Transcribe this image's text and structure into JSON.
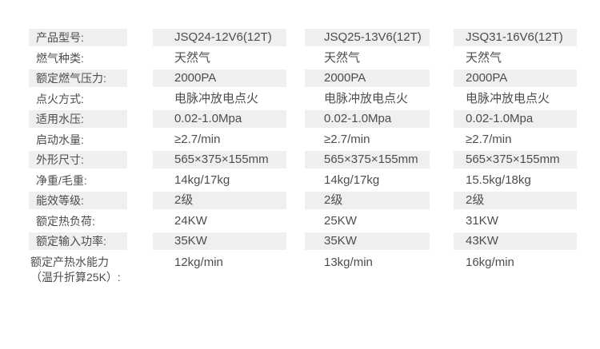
{
  "colors": {
    "background": "#ffffff",
    "row_shade": "#efefef",
    "text": "#4d4d4d"
  },
  "table": {
    "rows": [
      {
        "label": "产品型号:",
        "values": [
          "JSQ24-12V6(12T)",
          "JSQ25-13V6(12T)",
          "JSQ31-16V6(12T)"
        ],
        "shaded": true
      },
      {
        "label": "燃气种类:",
        "values": [
          "天然气",
          "天然气",
          "天然气"
        ],
        "shaded": false
      },
      {
        "label": "额定燃气压力:",
        "values": [
          "2000PA",
          "2000PA",
          "2000PA"
        ],
        "shaded": true
      },
      {
        "label": "点火方式:",
        "values": [
          "电脉冲放电点火",
          "电脉冲放电点火",
          "电脉冲放电点火"
        ],
        "shaded": false
      },
      {
        "label": "适用水压:",
        "values": [
          "0.02-1.0Mpa",
          "0.02-1.0Mpa",
          "0.02-1.0Mpa"
        ],
        "shaded": true
      },
      {
        "label": "启动水量:",
        "values": [
          "≥2.7/min",
          "≥2.7/min",
          "≥2.7/min"
        ],
        "shaded": false
      },
      {
        "label": "外形尺寸:",
        "values": [
          "565×375×155mm",
          "565×375×155mm",
          "565×375×155mm"
        ],
        "shaded": true
      },
      {
        "label": "净重/毛重:",
        "values": [
          "14kg/17kg",
          "14kg/17kg",
          "15.5kg/18kg"
        ],
        "shaded": false
      },
      {
        "label": "能效等级:",
        "values": [
          "2级",
          "2级",
          "2级"
        ],
        "shaded": true
      },
      {
        "label": "额定热负荷:",
        "values": [
          "24KW",
          "25KW",
          "31KW"
        ],
        "shaded": false
      },
      {
        "label": "额定输入功率:",
        "values": [
          "35KW",
          "35KW",
          "43KW"
        ],
        "shaded": true
      },
      {
        "label": "额定产热水能力\n（温升折算25K）:",
        "values": [
          "12kg/min",
          "13kg/min",
          "16kg/min"
        ],
        "shaded": false
      }
    ]
  }
}
